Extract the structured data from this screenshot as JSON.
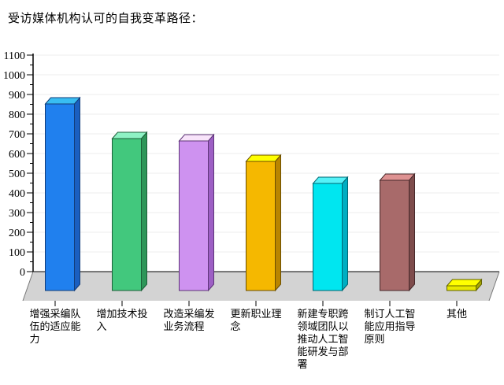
{
  "title": "受访媒体机构认可的自我变革路径：",
  "chart_data": {
    "type": "bar",
    "style": "pseudo-3d-column",
    "title": "受访媒体机构认可的自我变革路径：",
    "xlabel": "",
    "ylabel": "",
    "legend": false,
    "grid": true,
    "categories": [
      "增强采编队伍的适应能力",
      "增加技术投入",
      "改造采编发业务流程",
      "更新职业理念",
      "新建专职跨领域团队以推动人工智能研发与部署",
      "制订人工智能应用指导原则",
      "其他"
    ],
    "category_label_lines": [
      [
        "增强采编队",
        "伍的适应能",
        "力"
      ],
      [
        "增加技术投",
        "入"
      ],
      [
        "改造采编发",
        "业务流程"
      ],
      [
        "更新职业理",
        "念"
      ],
      [
        "新建专职跨",
        "领域团队以",
        "推动人工智",
        "能研发与部",
        "署"
      ],
      [
        "制订人工智",
        "能应用指导",
        "原则"
      ],
      [
        "其他"
      ]
    ],
    "values": [
      855,
      695,
      685,
      590,
      490,
      505,
      20
    ],
    "ylim": [
      0,
      1100
    ],
    "y_tick_interval": 100,
    "y_minor_tick_interval": 50,
    "y_tick_labels": [
      "0",
      "100",
      "200",
      "300",
      "400",
      "500",
      "600",
      "700",
      "800",
      "900",
      "1000",
      "1100"
    ],
    "bar_colors": [
      {
        "name": "blue",
        "front": "#2080ee",
        "top": "#38bdf2",
        "side": "#1a5fc0",
        "edge": "#123c78"
      },
      {
        "name": "green",
        "front": "#42c87d",
        "top": "#8ef2c4",
        "side": "#2e9659",
        "edge": "#1c5e38"
      },
      {
        "name": "violet",
        "front": "#ce92f0",
        "top": "#f8e4fa",
        "side": "#9d5fc4",
        "edge": "#5e3578"
      },
      {
        "name": "orange",
        "front": "#f5b800",
        "top": "#ffff00",
        "side": "#b98500",
        "edge": "#6b4e00"
      },
      {
        "name": "cyan",
        "front": "#00e6f0",
        "top": "#55f2f8",
        "side": "#00aec2",
        "edge": "#006672"
      },
      {
        "name": "brown",
        "front": "#a86a6a",
        "top": "#de9292",
        "side": "#7e4c4c",
        "edge": "#46282a"
      },
      {
        "name": "yellow",
        "front": "#e8e800",
        "top": "#ffff00",
        "side": "#a8a800",
        "edge": "#626200"
      }
    ],
    "floor_color": "#d3d3d3",
    "gridline_color": "#ececec",
    "axis_color": "#000000"
  }
}
